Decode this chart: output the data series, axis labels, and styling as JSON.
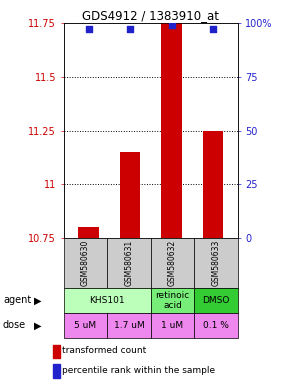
{
  "title": "GDS4912 / 1383910_at",
  "samples": [
    "GSM580630",
    "GSM580631",
    "GSM580632",
    "GSM580633"
  ],
  "bar_values": [
    10.8,
    11.15,
    11.75,
    11.25
  ],
  "bar_bottom": 10.75,
  "percentile_values": [
    97,
    97,
    99,
    97
  ],
  "ylim": [
    10.75,
    11.75
  ],
  "yticks": [
    10.75,
    11.0,
    11.25,
    11.5,
    11.75
  ],
  "ytick_labels": [
    "10.75",
    "11",
    "11.25",
    "11.5",
    "11.75"
  ],
  "right_yticks": [
    0,
    25,
    50,
    75,
    100
  ],
  "right_ytick_labels": [
    "0",
    "25",
    "50",
    "75",
    "100%"
  ],
  "bar_color": "#cc0000",
  "dot_color": "#2222cc",
  "agent_groups": [
    {
      "label": "KHS101",
      "span": [
        0,
        2
      ],
      "color": "#bbffbb"
    },
    {
      "label": "retinoic\nacid",
      "span": [
        2,
        3
      ],
      "color": "#77ee77"
    },
    {
      "label": "DMSO",
      "span": [
        3,
        4
      ],
      "color": "#33cc33"
    }
  ],
  "doses": [
    "5 uM",
    "1.7 uM",
    "1 uM",
    "0.1 %"
  ],
  "dose_color": "#ee88ee",
  "sample_bg_color": "#cccccc"
}
